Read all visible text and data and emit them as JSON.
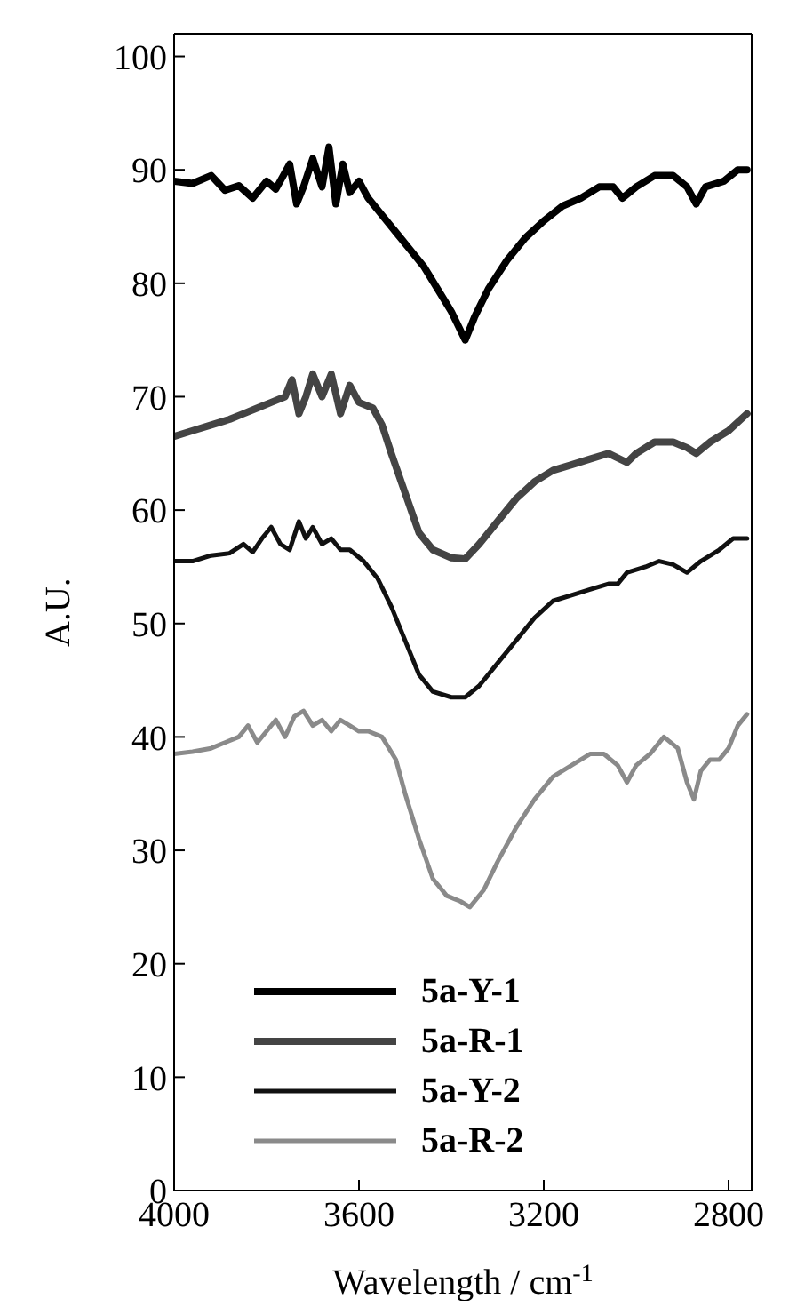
{
  "chart_data": {
    "type": "line",
    "xlabel": "Wavelength / cm$^{-1}$",
    "ylabel": "A.U.",
    "xlim": [
      4000,
      2750
    ],
    "xticks": [
      4000,
      3600,
      3200,
      2800
    ],
    "ylim": [
      0,
      102
    ],
    "yticks": [
      0,
      10,
      20,
      30,
      40,
      50,
      60,
      70,
      80,
      90,
      100
    ],
    "legend": "bottom",
    "marker": "none",
    "line_style": "solid",
    "series": [
      {
        "name": "5a-Y-1",
        "color": "#000000",
        "x": [
          4000,
          3960,
          3920,
          3890,
          3860,
          3830,
          3800,
          3780,
          3750,
          3735,
          3720,
          3700,
          3680,
          3665,
          3650,
          3635,
          3620,
          3600,
          3580,
          3550,
          3520,
          3490,
          3460,
          3430,
          3400,
          3370,
          3350,
          3320,
          3280,
          3240,
          3200,
          3160,
          3120,
          3080,
          3050,
          3030,
          3000,
          2960,
          2920,
          2890,
          2870,
          2850,
          2810,
          2780,
          2760
        ],
        "values": [
          89,
          88.8,
          89.5,
          88.2,
          88.6,
          87.5,
          89,
          88.3,
          90.5,
          87,
          88.5,
          91,
          88.5,
          92,
          87,
          90.5,
          88,
          89,
          87.5,
          86,
          84.5,
          83,
          81.5,
          79.5,
          77.5,
          75,
          77,
          79.5,
          82,
          84,
          85.5,
          86.8,
          87.5,
          88.5,
          88.5,
          87.5,
          88.5,
          89.5,
          89.5,
          88.5,
          87,
          88.5,
          89,
          90,
          90
        ]
      },
      {
        "name": "5a-R-1",
        "color": "#444444",
        "x": [
          4000,
          3960,
          3920,
          3880,
          3850,
          3820,
          3790,
          3760,
          3745,
          3730,
          3715,
          3700,
          3680,
          3660,
          3640,
          3620,
          3600,
          3570,
          3550,
          3530,
          3500,
          3470,
          3440,
          3400,
          3370,
          3340,
          3300,
          3260,
          3220,
          3180,
          3140,
          3100,
          3060,
          3020,
          3000,
          2960,
          2920,
          2890,
          2870,
          2840,
          2800,
          2760
        ],
        "values": [
          66.5,
          67,
          67.5,
          68,
          68.5,
          69,
          69.5,
          70,
          71.5,
          68.5,
          70,
          72,
          70,
          72,
          68.5,
          71,
          69.5,
          69,
          67.5,
          65,
          61.5,
          58,
          56.5,
          55.8,
          55.7,
          57,
          59,
          61,
          62.5,
          63.5,
          64,
          64.5,
          65,
          64.2,
          65,
          66,
          66,
          65.5,
          65,
          66,
          67,
          68.5
        ]
      },
      {
        "name": "5a-Y-2",
        "color": "#111111",
        "x": [
          4000,
          3960,
          3920,
          3880,
          3850,
          3830,
          3810,
          3790,
          3770,
          3750,
          3730,
          3715,
          3700,
          3680,
          3660,
          3640,
          3620,
          3590,
          3560,
          3530,
          3500,
          3470,
          3440,
          3400,
          3370,
          3340,
          3300,
          3260,
          3220,
          3180,
          3140,
          3100,
          3060,
          3040,
          3020,
          2980,
          2950,
          2920,
          2890,
          2860,
          2820,
          2790,
          2760
        ],
        "values": [
          55.5,
          55.5,
          56,
          56.2,
          57,
          56.3,
          57.5,
          58.5,
          57,
          56.5,
          59,
          57.5,
          58.5,
          57,
          57.5,
          56.5,
          56.5,
          55.5,
          54,
          51.5,
          48.5,
          45.5,
          44,
          43.5,
          43.5,
          44.5,
          46.5,
          48.5,
          50.5,
          52,
          52.5,
          53,
          53.5,
          53.5,
          54.5,
          55,
          55.5,
          55.2,
          54.5,
          55.5,
          56.5,
          57.5,
          57.5
        ]
      },
      {
        "name": "5a-R-2",
        "color": "#8a8a8a",
        "x": [
          4000,
          3960,
          3920,
          3890,
          3860,
          3840,
          3820,
          3800,
          3780,
          3760,
          3740,
          3720,
          3700,
          3680,
          3660,
          3640,
          3620,
          3600,
          3580,
          3550,
          3520,
          3500,
          3470,
          3440,
          3410,
          3380,
          3360,
          3330,
          3300,
          3260,
          3220,
          3180,
          3140,
          3100,
          3070,
          3040,
          3020,
          3000,
          2970,
          2940,
          2910,
          2890,
          2875,
          2860,
          2840,
          2820,
          2800,
          2780,
          2760
        ],
        "values": [
          38.5,
          38.7,
          39,
          39.5,
          40,
          41,
          39.5,
          40.5,
          41.5,
          40,
          41.8,
          42.3,
          41,
          41.5,
          40.5,
          41.5,
          41,
          40.5,
          40.5,
          40,
          38,
          35,
          31,
          27.5,
          26,
          25.5,
          25,
          26.5,
          29,
          32,
          34.5,
          36.5,
          37.5,
          38.5,
          38.5,
          37.5,
          36,
          37.5,
          38.5,
          40,
          39,
          36,
          34.5,
          37,
          38,
          38,
          39,
          41,
          42
        ]
      }
    ]
  }
}
